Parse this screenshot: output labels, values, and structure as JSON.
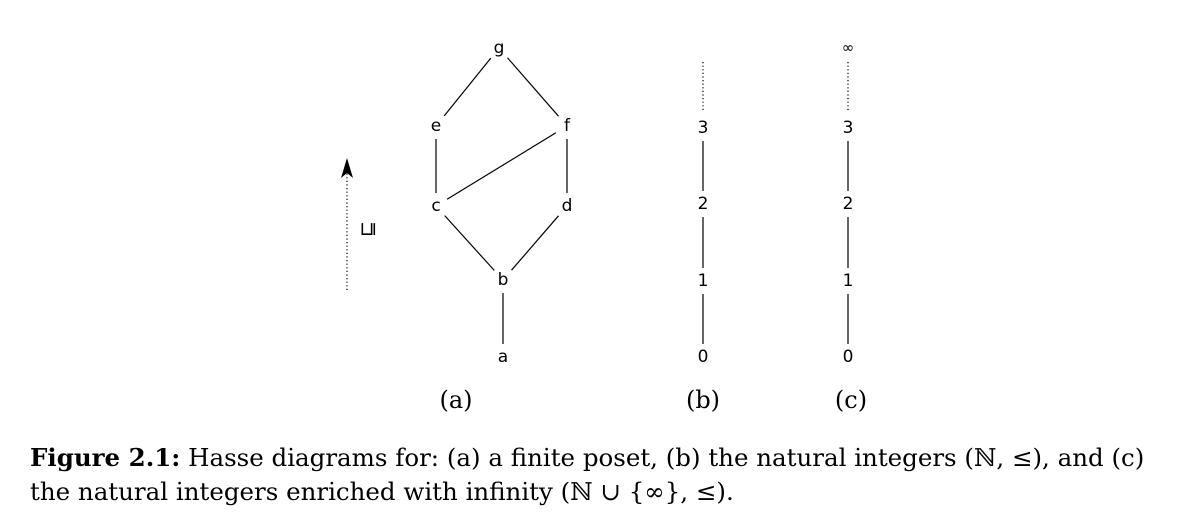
{
  "diagram_a": {
    "nodes": [
      "a",
      "b",
      "c",
      "d",
      "e",
      "f",
      "g"
    ],
    "edges": [
      [
        "a",
        "b"
      ],
      [
        "b",
        "c"
      ],
      [
        "b",
        "d"
      ],
      [
        "c",
        "e"
      ],
      [
        "c",
        "f"
      ],
      [
        "d",
        "f"
      ],
      [
        "e",
        "g"
      ],
      [
        "f",
        "g"
      ]
    ],
    "order_symbol": "⊑",
    "label": "(a)"
  },
  "diagram_b": {
    "nodes": [
      "0",
      "1",
      "2",
      "3"
    ],
    "label": "(b)"
  },
  "diagram_c": {
    "nodes": [
      "0",
      "1",
      "2",
      "3",
      "∞"
    ],
    "label": "(c)"
  },
  "caption": {
    "label": "Figure 2.1:",
    "text": " Hasse diagrams for: (a) a finite poset, (b) the natural integers (ℕ, ≤), and (c) the natural integers enriched with infinity (ℕ ∪ {∞}, ≤)."
  }
}
